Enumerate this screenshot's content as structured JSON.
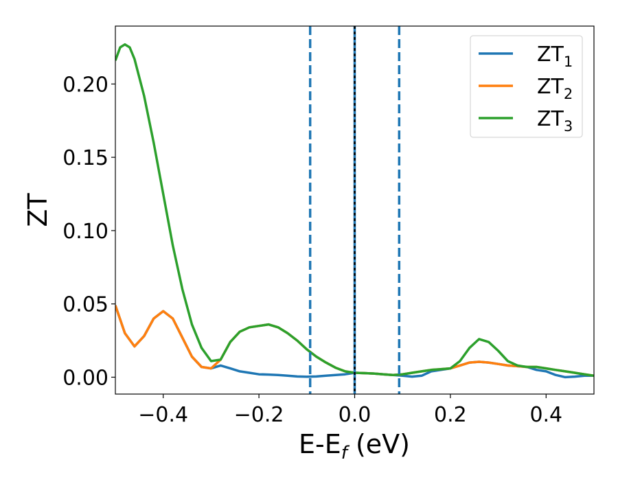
{
  "chart_data": {
    "type": "line",
    "xlabel": "E-E",
    "xlabel_sub": "f",
    "xlabel_unit": " (eV)",
    "ylabel": "ZT",
    "xlim": [
      -0.5,
      0.5
    ],
    "ylim": [
      -0.0115,
      0.2395
    ],
    "xticks": [
      -0.4,
      -0.2,
      0.0,
      0.2,
      0.4
    ],
    "xtick_labels": [
      "−0.4",
      "−0.2",
      "0.0",
      "0.2",
      "0.4"
    ],
    "yticks": [
      0.0,
      0.05,
      0.1,
      0.15,
      0.2
    ],
    "ytick_labels": [
      "0.00",
      "0.05",
      "0.10",
      "0.15",
      "0.20"
    ],
    "legend_position": "top-right",
    "grid": false,
    "series": [
      {
        "name": "ZT",
        "name_sub": "1",
        "color": "#1f77b4",
        "points": [
          [
            -0.5,
            0.049
          ],
          [
            -0.48,
            0.03
          ],
          [
            -0.46,
            0.021
          ],
          [
            -0.44,
            0.028
          ],
          [
            -0.42,
            0.04
          ],
          [
            -0.4,
            0.045
          ],
          [
            -0.38,
            0.04
          ],
          [
            -0.36,
            0.027
          ],
          [
            -0.34,
            0.014
          ],
          [
            -0.32,
            0.007
          ],
          [
            -0.3,
            0.006
          ],
          [
            -0.28,
            0.008
          ],
          [
            -0.26,
            0.006
          ],
          [
            -0.24,
            0.004
          ],
          [
            -0.22,
            0.003
          ],
          [
            -0.2,
            0.002
          ],
          [
            -0.18,
            0.0018
          ],
          [
            -0.16,
            0.0015
          ],
          [
            -0.14,
            0.001
          ],
          [
            -0.12,
            0.0005
          ],
          [
            -0.1,
            0.0003
          ],
          [
            -0.08,
            0.0005
          ],
          [
            -0.06,
            0.001
          ],
          [
            -0.04,
            0.0015
          ],
          [
            -0.02,
            0.002
          ],
          [
            0.0,
            0.003
          ],
          [
            0.02,
            0.0028
          ],
          [
            0.04,
            0.0025
          ],
          [
            0.06,
            0.002
          ],
          [
            0.08,
            0.0015
          ],
          [
            0.1,
            0.001
          ],
          [
            0.12,
            0.0004
          ],
          [
            0.14,
            0.001
          ],
          [
            0.16,
            0.004
          ],
          [
            0.18,
            0.005
          ],
          [
            0.2,
            0.006
          ],
          [
            0.22,
            0.008
          ],
          [
            0.24,
            0.01
          ],
          [
            0.26,
            0.0105
          ],
          [
            0.28,
            0.01
          ],
          [
            0.3,
            0.009
          ],
          [
            0.32,
            0.008
          ],
          [
            0.34,
            0.0075
          ],
          [
            0.36,
            0.007
          ],
          [
            0.38,
            0.005
          ],
          [
            0.4,
            0.004
          ],
          [
            0.42,
            0.0015
          ],
          [
            0.44,
            0.0
          ],
          [
            0.46,
            0.0004
          ],
          [
            0.48,
            0.001
          ],
          [
            0.5,
            0.001
          ]
        ]
      },
      {
        "name": "ZT",
        "name_sub": "2",
        "color": "#ff7f0e",
        "points": [
          [
            -0.5,
            0.049
          ],
          [
            -0.48,
            0.03
          ],
          [
            -0.46,
            0.021
          ],
          [
            -0.44,
            0.028
          ],
          [
            -0.42,
            0.04
          ],
          [
            -0.4,
            0.045
          ],
          [
            -0.38,
            0.04
          ],
          [
            -0.36,
            0.027
          ],
          [
            -0.34,
            0.014
          ],
          [
            -0.32,
            0.007
          ],
          [
            -0.3,
            0.006
          ],
          [
            -0.28,
            0.012
          ],
          [
            -0.26,
            0.024
          ],
          [
            -0.24,
            0.031
          ],
          [
            -0.22,
            0.034
          ],
          [
            -0.2,
            0.035
          ],
          [
            -0.18,
            0.036
          ],
          [
            -0.16,
            0.034
          ],
          [
            -0.14,
            0.03
          ],
          [
            -0.12,
            0.025
          ],
          [
            -0.1,
            0.019
          ],
          [
            -0.08,
            0.014
          ],
          [
            -0.06,
            0.01
          ],
          [
            -0.04,
            0.0065
          ],
          [
            -0.02,
            0.004
          ],
          [
            0.0,
            0.003
          ],
          [
            0.02,
            0.0028
          ],
          [
            0.04,
            0.0025
          ],
          [
            0.06,
            0.002
          ],
          [
            0.08,
            0.0015
          ],
          [
            0.1,
            0.002
          ],
          [
            0.12,
            0.003
          ],
          [
            0.14,
            0.004
          ],
          [
            0.16,
            0.005
          ],
          [
            0.18,
            0.0055
          ],
          [
            0.2,
            0.006
          ],
          [
            0.22,
            0.008
          ],
          [
            0.24,
            0.01
          ],
          [
            0.26,
            0.0105
          ],
          [
            0.28,
            0.01
          ],
          [
            0.3,
            0.009
          ],
          [
            0.32,
            0.008
          ],
          [
            0.34,
            0.0075
          ],
          [
            0.36,
            0.007
          ],
          [
            0.38,
            0.007
          ],
          [
            0.4,
            0.006
          ],
          [
            0.42,
            0.005
          ],
          [
            0.44,
            0.004
          ],
          [
            0.46,
            0.003
          ],
          [
            0.48,
            0.002
          ],
          [
            0.5,
            0.001
          ]
        ]
      },
      {
        "name": "ZT",
        "name_sub": "3",
        "color": "#2ca02c",
        "points": [
          [
            -0.5,
            0.216
          ],
          [
            -0.49,
            0.225
          ],
          [
            -0.48,
            0.227
          ],
          [
            -0.47,
            0.225
          ],
          [
            -0.46,
            0.217
          ],
          [
            -0.44,
            0.192
          ],
          [
            -0.42,
            0.16
          ],
          [
            -0.4,
            0.125
          ],
          [
            -0.38,
            0.09
          ],
          [
            -0.36,
            0.06
          ],
          [
            -0.34,
            0.036
          ],
          [
            -0.32,
            0.02
          ],
          [
            -0.3,
            0.011
          ],
          [
            -0.28,
            0.012
          ],
          [
            -0.26,
            0.024
          ],
          [
            -0.24,
            0.031
          ],
          [
            -0.22,
            0.034
          ],
          [
            -0.2,
            0.035
          ],
          [
            -0.18,
            0.036
          ],
          [
            -0.16,
            0.034
          ],
          [
            -0.14,
            0.03
          ],
          [
            -0.12,
            0.025
          ],
          [
            -0.1,
            0.019
          ],
          [
            -0.08,
            0.014
          ],
          [
            -0.06,
            0.01
          ],
          [
            -0.04,
            0.0065
          ],
          [
            -0.02,
            0.004
          ],
          [
            0.0,
            0.003
          ],
          [
            0.02,
            0.0028
          ],
          [
            0.04,
            0.0025
          ],
          [
            0.06,
            0.002
          ],
          [
            0.08,
            0.0015
          ],
          [
            0.1,
            0.002
          ],
          [
            0.12,
            0.003
          ],
          [
            0.14,
            0.004
          ],
          [
            0.16,
            0.005
          ],
          [
            0.18,
            0.0055
          ],
          [
            0.2,
            0.006
          ],
          [
            0.22,
            0.011
          ],
          [
            0.24,
            0.02
          ],
          [
            0.26,
            0.026
          ],
          [
            0.28,
            0.024
          ],
          [
            0.3,
            0.018
          ],
          [
            0.32,
            0.011
          ],
          [
            0.34,
            0.008
          ],
          [
            0.36,
            0.007
          ],
          [
            0.38,
            0.007
          ],
          [
            0.4,
            0.006
          ],
          [
            0.42,
            0.005
          ],
          [
            0.44,
            0.004
          ],
          [
            0.46,
            0.003
          ],
          [
            0.48,
            0.002
          ],
          [
            0.5,
            0.001
          ]
        ]
      }
    ],
    "vlines": [
      {
        "x": -0.093,
        "style": "dashed",
        "color": "#1f77b4"
      },
      {
        "x": 0.093,
        "style": "dashed",
        "color": "#1f77b4"
      },
      {
        "x": 0.0,
        "style": "solid",
        "color": "#1f77b4"
      },
      {
        "x": 0.0,
        "style": "dotted",
        "color": "#000000"
      }
    ]
  }
}
